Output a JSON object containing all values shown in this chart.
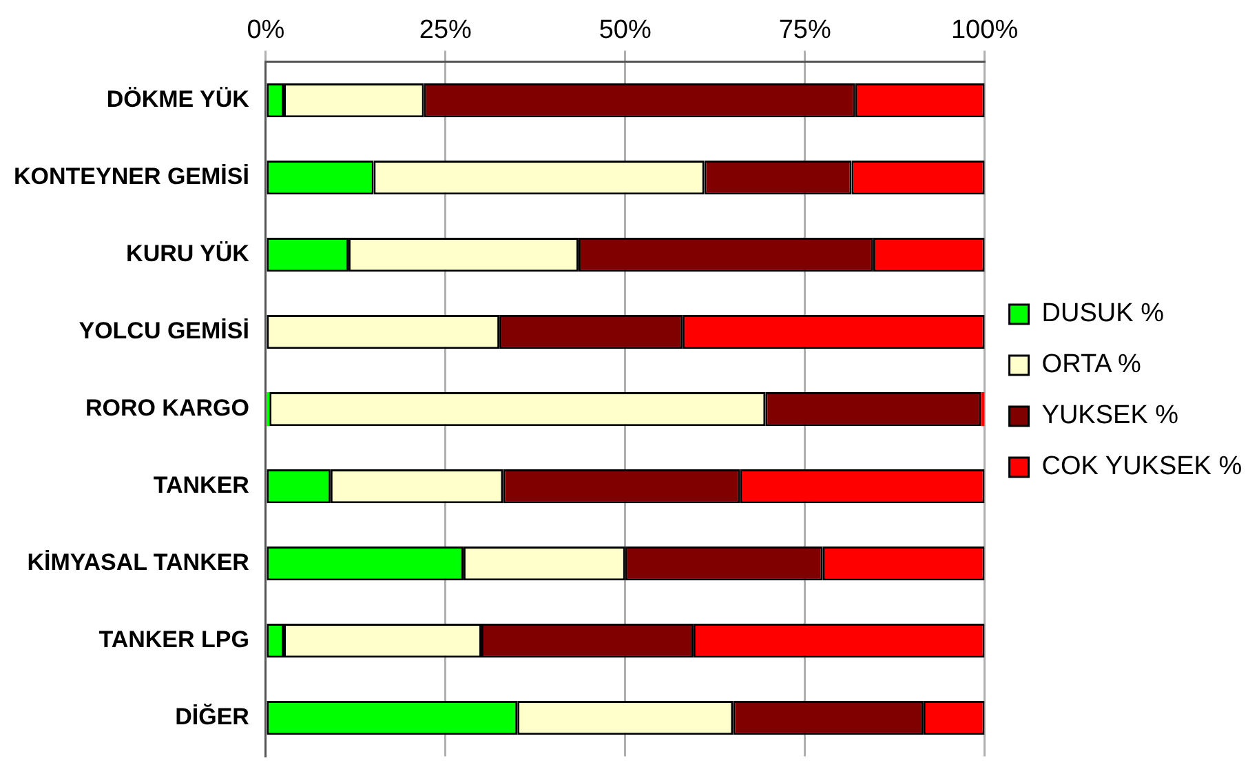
{
  "chart_data": {
    "type": "bar",
    "orientation": "horizontal",
    "stacked": true,
    "categories": [
      "DÖKME YÜK",
      "KONTEYNER GEMİSİ",
      "KURU YÜK",
      "YOLCU GEMİSİ",
      "RORO KARGO",
      "TANKER",
      "KİMYASAL TANKER",
      "TANKER LPG",
      "DİĞER"
    ],
    "series": [
      {
        "name": "DUSUK %",
        "color": "#00ff00",
        "values": [
          2.5,
          15,
          11.5,
          0,
          0.5,
          9,
          27.5,
          2.5,
          35
        ]
      },
      {
        "name": "ORTA %",
        "color": "#ffffcc",
        "values": [
          19.5,
          46,
          32,
          32.5,
          69,
          24,
          22.5,
          27.5,
          30
        ]
      },
      {
        "name": "YUKSEK %",
        "color": "#800000",
        "values": [
          60,
          20.5,
          41,
          25.5,
          30,
          33,
          27.5,
          29.5,
          26.5
        ]
      },
      {
        "name": "COK YUKSEK %",
        "color": "#ff0000",
        "values": [
          18,
          18.5,
          15.5,
          42,
          0.5,
          34,
          22.5,
          40.5,
          8.5
        ]
      }
    ],
    "xlim": [
      0,
      100
    ],
    "xticks": [
      {
        "value": 0,
        "label": "0%"
      },
      {
        "value": 25,
        "label": "25%"
      },
      {
        "value": 50,
        "label": "50%"
      },
      {
        "value": 75,
        "label": "75%"
      },
      {
        "value": 100,
        "label": "100%"
      }
    ],
    "grid": "x",
    "legend": "right"
  }
}
